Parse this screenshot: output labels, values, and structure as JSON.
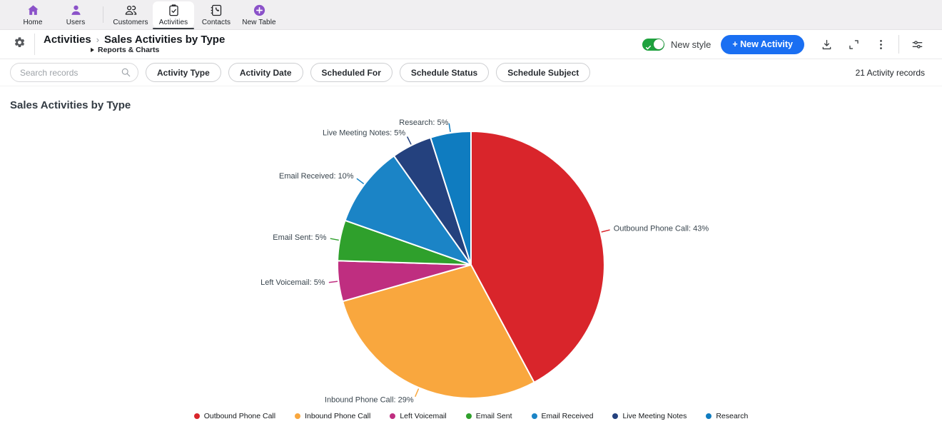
{
  "nav": {
    "items": [
      {
        "label": "Home",
        "icon": "home",
        "tint": "purple",
        "active": false,
        "divider_after": false
      },
      {
        "label": "Users",
        "icon": "user",
        "tint": "purple",
        "active": false,
        "divider_after": true
      },
      {
        "label": "Customers",
        "icon": "customers",
        "tint": "dark",
        "active": false,
        "divider_after": false
      },
      {
        "label": "Activities",
        "icon": "activities",
        "tint": "dark",
        "active": true,
        "divider_after": false
      },
      {
        "label": "Contacts",
        "icon": "contacts",
        "tint": "dark",
        "active": false,
        "divider_after": false
      },
      {
        "label": "New Table",
        "icon": "plus-circle",
        "tint": "purple",
        "active": false,
        "divider_after": false
      }
    ]
  },
  "header": {
    "breadcrumb_parent": "Activities",
    "breadcrumb_separator": "›",
    "breadcrumb_current": "Sales Activities by Type",
    "sub_breadcrumb": "Reports & Charts",
    "new_style_label": "New style",
    "new_style_on": true,
    "new_activity_label": "+ New Activity"
  },
  "filters": {
    "search_placeholder": "Search records",
    "chips": [
      "Activity Type",
      "Activity Date",
      "Scheduled For",
      "Schedule Status",
      "Schedule Subject"
    ],
    "records_label": "21 Activity records"
  },
  "chart_data": {
    "type": "pie",
    "title": "Sales Activities by Type",
    "start_angle_deg": 0,
    "direction": "clockwise",
    "legend_position": "bottom",
    "slices": [
      {
        "label": "Outbound Phone Call",
        "percent": 43,
        "color": "#d9252b"
      },
      {
        "label": "Inbound Phone Call",
        "percent": 29,
        "color": "#f9a73e"
      },
      {
        "label": "Left Voicemail",
        "percent": 5,
        "color": "#bf2e80"
      },
      {
        "label": "Email Sent",
        "percent": 5,
        "color": "#2fa02c"
      },
      {
        "label": "Email Received",
        "percent": 10,
        "color": "#1b84c6"
      },
      {
        "label": "Live Meeting Notes",
        "percent": 5,
        "color": "#24417e"
      },
      {
        "label": "Research",
        "percent": 5,
        "color": "#0f7cc0"
      }
    ]
  },
  "colors": {
    "purple": "#8b52c9",
    "icon_dark": "#202124",
    "toggle_green": "#1fa23e",
    "button_blue": "#1a6ff2"
  }
}
